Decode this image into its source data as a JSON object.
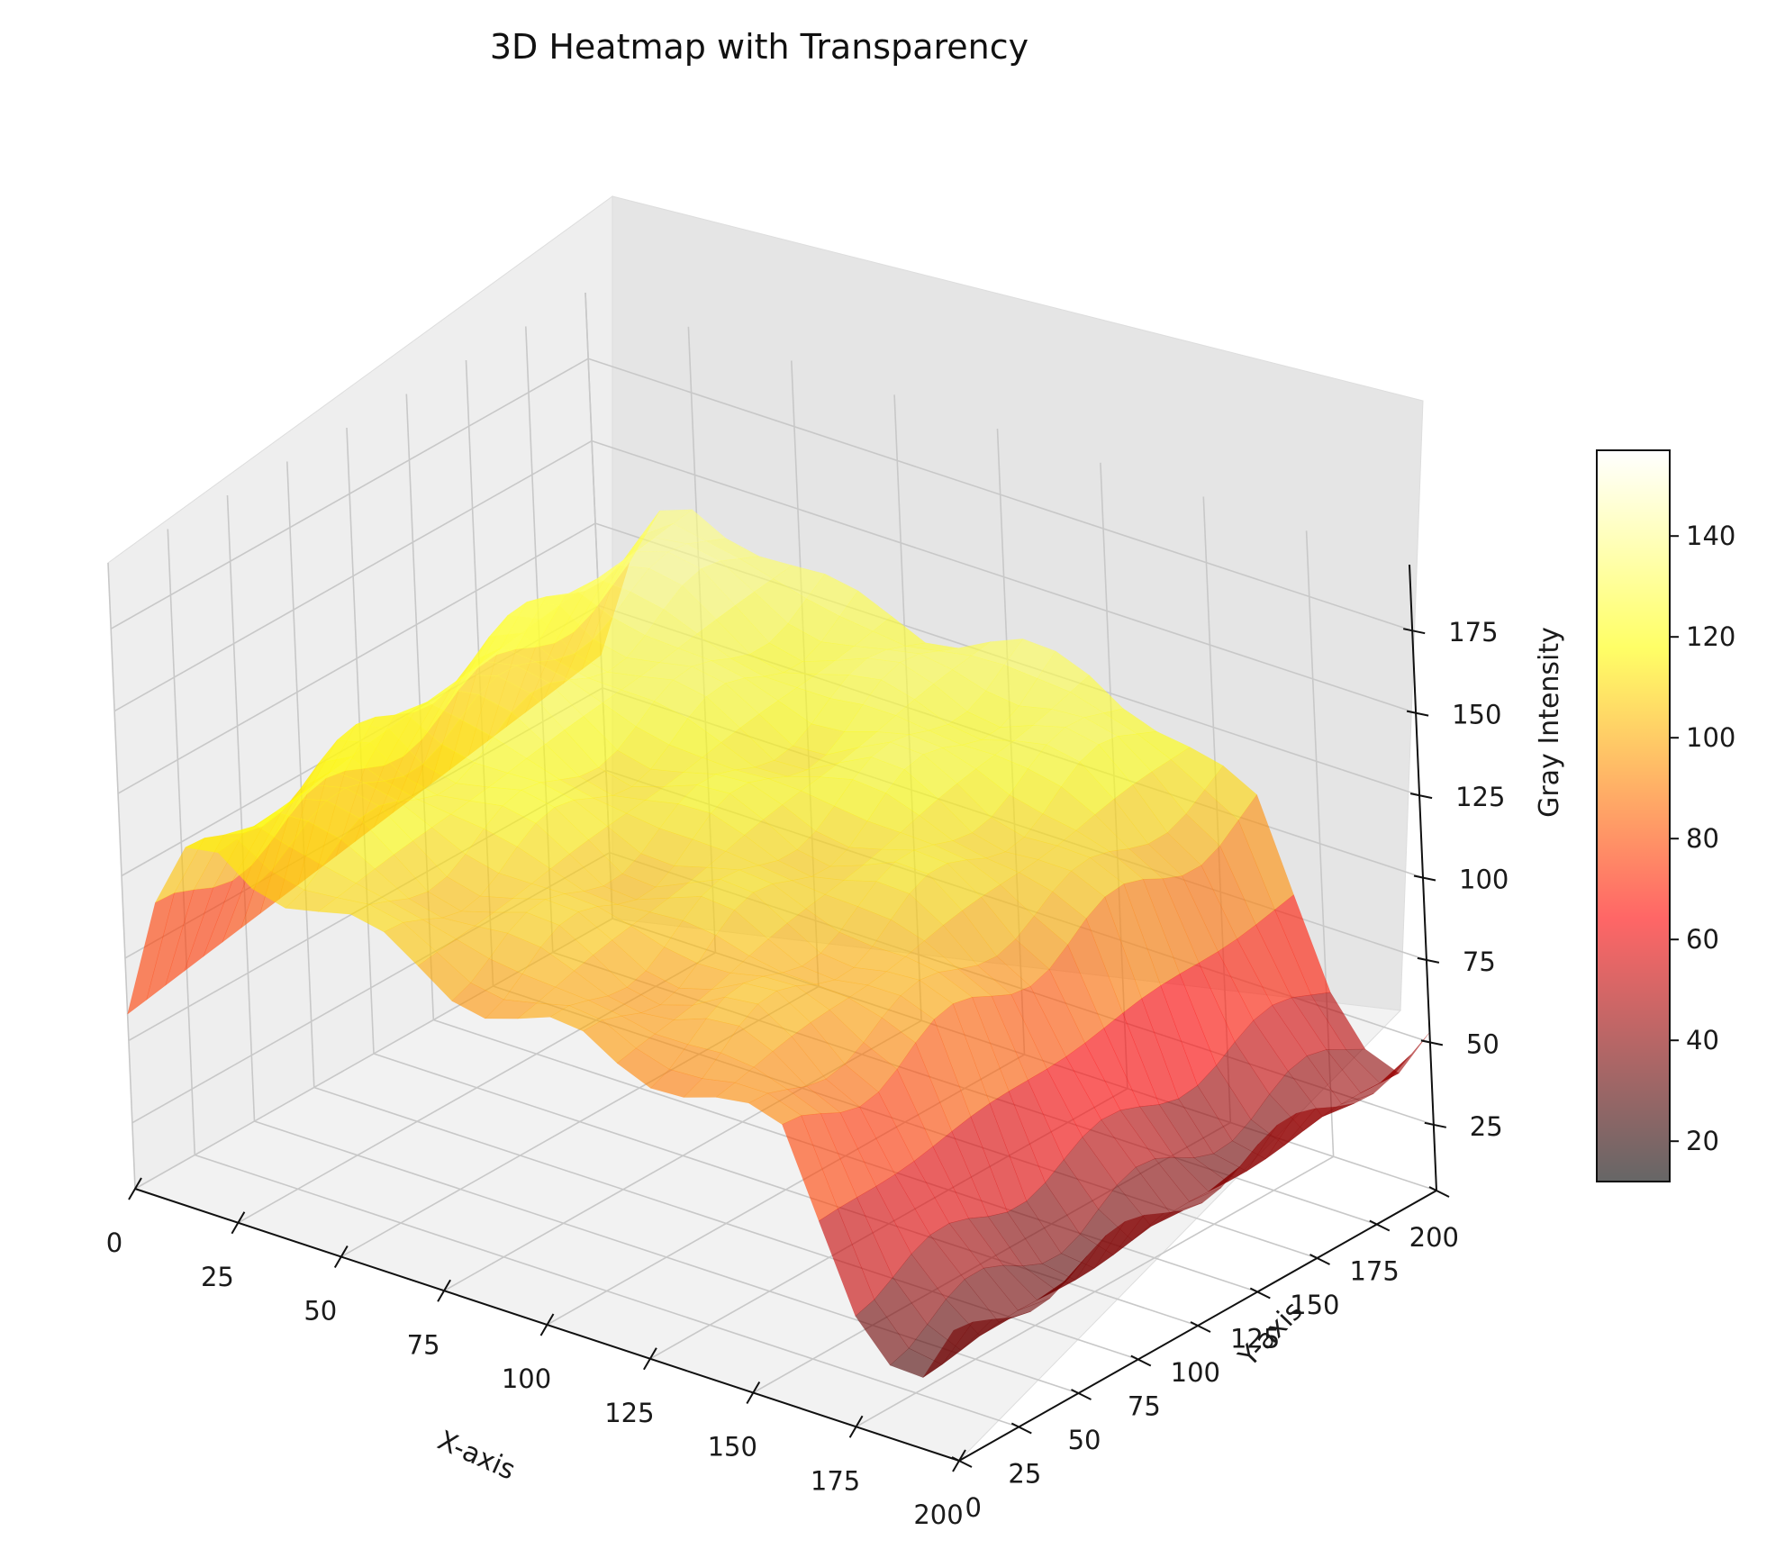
{
  "chart_data": {
    "type": "surface",
    "title": "3D Heatmap with Transparency",
    "xlabel": "X-axis",
    "ylabel": "Y-axis",
    "zlabel": "",
    "colorbar_label": "Gray Intensity",
    "colormap": "hot",
    "alpha": 0.6,
    "xlim": [
      0,
      200
    ],
    "ylim": [
      0,
      200
    ],
    "zlim": [
      5,
      195
    ],
    "x_ticks": [
      0,
      25,
      50,
      75,
      100,
      125,
      150,
      175,
      200
    ],
    "y_ticks": [
      0,
      25,
      50,
      75,
      100,
      125,
      150,
      175,
      200
    ],
    "z_ticks": [
      25,
      50,
      75,
      100,
      125,
      150,
      175
    ],
    "colorbar_range": [
      12,
      157
    ],
    "colorbar_ticks": [
      20,
      40,
      60,
      80,
      100,
      120,
      140
    ],
    "grid": true,
    "x_profile": [
      {
        "x": 0,
        "front": 58,
        "back": 85
      },
      {
        "x": 10,
        "front": 98,
        "back": 120
      },
      {
        "x": 20,
        "front": 118,
        "back": 140
      },
      {
        "x": 40,
        "front": 112,
        "back": 135
      },
      {
        "x": 60,
        "front": 105,
        "back": 128
      },
      {
        "x": 80,
        "front": 100,
        "back": 125
      },
      {
        "x": 100,
        "front": 96,
        "back": 130
      },
      {
        "x": 120,
        "front": 92,
        "back": 128
      },
      {
        "x": 140,
        "front": 95,
        "back": 120
      },
      {
        "x": 160,
        "front": 85,
        "back": 105
      },
      {
        "x": 175,
        "front": 45,
        "back": 60
      },
      {
        "x": 190,
        "front": 25,
        "back": 35
      },
      {
        "x": 200,
        "front": 40,
        "back": 50
      }
    ]
  }
}
